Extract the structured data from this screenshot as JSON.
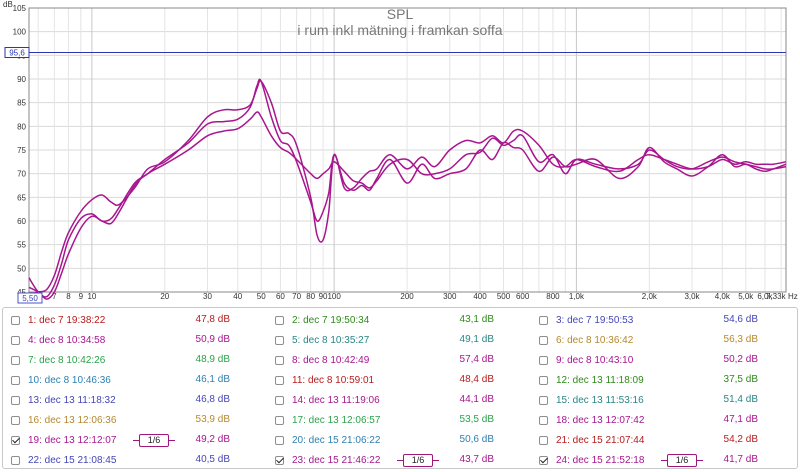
{
  "chart_data": {
    "type": "line",
    "title": "SPL",
    "subtitle": "i rum inkl mätning i framkan soffa",
    "y_unit": "dB",
    "x_unit": "Hz",
    "x_scale": "log",
    "xlim": [
      5.5,
      7330
    ],
    "ylim": [
      45,
      105
    ],
    "grid": true,
    "y_ticks": [
      45,
      50,
      55,
      60,
      65,
      70,
      75,
      80,
      85,
      90,
      95,
      100,
      105
    ],
    "x_ticks": [
      {
        "v": 7,
        "label": "7"
      },
      {
        "v": 8,
        "label": "8"
      },
      {
        "v": 9,
        "label": "9"
      },
      {
        "v": 10,
        "label": "10"
      },
      {
        "v": 20,
        "label": "20"
      },
      {
        "v": 30,
        "label": "30"
      },
      {
        "v": 40,
        "label": "40"
      },
      {
        "v": 50,
        "label": "50"
      },
      {
        "v": 60,
        "label": "60"
      },
      {
        "v": 70,
        "label": "70"
      },
      {
        "v": 80,
        "label": "80"
      },
      {
        "v": 90,
        "label": "90"
      },
      {
        "v": 100,
        "label": "100"
      },
      {
        "v": 200,
        "label": "200"
      },
      {
        "v": 300,
        "label": "300"
      },
      {
        "v": 400,
        "label": "400"
      },
      {
        "v": 500,
        "label": "500"
      },
      {
        "v": 600,
        "label": "600"
      },
      {
        "v": 800,
        "label": "800"
      },
      {
        "v": 1000,
        "label": "1,0k"
      },
      {
        "v": 2000,
        "label": "2,0k"
      },
      {
        "v": 3000,
        "label": "3,0k"
      },
      {
        "v": 4000,
        "label": "4,0k"
      },
      {
        "v": 5000,
        "label": "5,0k"
      },
      {
        "v": 6000,
        "label": "6,0k"
      }
    ],
    "x_min_label": "5,50",
    "x_max_label": "7,33k",
    "cursor_y": 95.6,
    "cursor_y_label": "95,6",
    "series": [
      {
        "name": "19: dec 13 12:12:07",
        "color": "#a8168f",
        "x": [
          5.5,
          6,
          6.5,
          7,
          7.5,
          8,
          9,
          10,
          11,
          12,
          13,
          15,
          17,
          20,
          25,
          30,
          35,
          40,
          45,
          48,
          50,
          55,
          60,
          65,
          70,
          80,
          85,
          90,
          95,
          100,
          110,
          120,
          130,
          140,
          150,
          170,
          200,
          230,
          260,
          300,
          350,
          400,
          450,
          500,
          550,
          600,
          700,
          800,
          900,
          1000,
          1200,
          1500,
          1800,
          2000,
          2300,
          2600,
          3000,
          3500,
          4000,
          4500,
          5000,
          5500,
          6000,
          6500,
          7330
        ],
        "y": [
          48,
          45,
          44,
          46.5,
          51,
          56,
          60.5,
          61.5,
          60,
          60.5,
          63,
          68,
          70,
          73,
          76.5,
          80.5,
          81,
          81.5,
          84,
          88.5,
          89.5,
          82,
          77,
          76,
          72.5,
          64,
          60,
          62,
          66,
          74,
          68,
          66.5,
          67.5,
          66.5,
          69,
          73,
          68,
          72,
          69,
          70,
          71,
          75,
          73,
          76.5,
          75.5,
          75,
          70.5,
          73.5,
          71.5,
          72,
          73,
          69,
          71.5,
          75.5,
          72.5,
          71,
          69.5,
          71.5,
          74,
          71.5,
          72,
          71,
          70.5,
          71,
          72
        ]
      },
      {
        "name": "23: dec 15 21:46:22",
        "color": "#a8168f",
        "x": [
          5.5,
          6,
          6.5,
          7,
          7.5,
          8,
          9,
          10,
          11,
          12,
          13,
          15,
          17,
          20,
          25,
          30,
          35,
          40,
          45,
          48,
          50,
          55,
          60,
          65,
          70,
          80,
          85,
          90,
          95,
          100,
          110,
          120,
          130,
          140,
          150,
          170,
          200,
          230,
          260,
          300,
          350,
          400,
          450,
          500,
          550,
          600,
          700,
          800,
          900,
          1000,
          1200,
          1500,
          1800,
          2000,
          2300,
          2600,
          3000,
          3500,
          4000,
          4500,
          5000,
          5500,
          6000,
          6500,
          7330
        ],
        "y": [
          46,
          45,
          43.5,
          45,
          49,
          53,
          58.5,
          61,
          60,
          59.5,
          62,
          67.5,
          70,
          72,
          75,
          78,
          79,
          79.5,
          81.5,
          83,
          82,
          78,
          75.5,
          74.5,
          73,
          70,
          69,
          70,
          71,
          72.5,
          70.5,
          68.5,
          68,
          67,
          68.5,
          72,
          73,
          70,
          70,
          71,
          74,
          74.5,
          77.5,
          76,
          77,
          78,
          72.5,
          74,
          70,
          73,
          72,
          71,
          72,
          75,
          73,
          71.5,
          71,
          72.5,
          73.5,
          72.5,
          72,
          71.5,
          71,
          71,
          71.5
        ]
      },
      {
        "name": "24: dec 15 21:52:18",
        "color": "#a8168f",
        "x": [
          5.5,
          6,
          6.5,
          7,
          7.5,
          8,
          9,
          10,
          11,
          12,
          13,
          15,
          17,
          20,
          25,
          30,
          35,
          40,
          45,
          48,
          50,
          55,
          60,
          65,
          70,
          80,
          85,
          90,
          95,
          100,
          110,
          120,
          130,
          140,
          150,
          170,
          200,
          230,
          260,
          300,
          350,
          400,
          450,
          500,
          550,
          600,
          700,
          800,
          900,
          1000,
          1200,
          1500,
          1800,
          2000,
          2300,
          2600,
          3000,
          3500,
          4000,
          4500,
          5000,
          5500,
          6000,
          6500,
          7330
        ],
        "y": [
          44.5,
          45,
          45.5,
          48.5,
          53.5,
          57.5,
          62,
          64.5,
          65.5,
          64,
          63.5,
          67,
          71,
          72.5,
          77,
          82,
          83.5,
          83.5,
          84.5,
          88,
          89.5,
          85,
          79,
          78.5,
          76,
          65,
          57,
          56,
          62,
          74,
          67,
          67,
          69,
          70.5,
          71,
          74,
          71,
          73.5,
          71.5,
          75,
          77,
          76.5,
          78,
          76.5,
          79,
          79,
          76,
          72,
          71.5,
          73,
          71.5,
          70.5,
          73,
          74,
          73,
          72,
          71,
          71.5,
          73,
          72,
          72.5,
          72,
          72,
          72,
          72.5
        ]
      }
    ]
  },
  "legend": [
    {
      "label": "1: dec 7 19:38:22",
      "value": "47,8 dB",
      "color": "#b71c1c",
      "checked": false,
      "smoothing": ""
    },
    {
      "label": "2: dec 7 19:50:34",
      "value": "43,1 dB",
      "color": "#2e8b1a",
      "checked": false,
      "smoothing": ""
    },
    {
      "label": "3: dec 7 19:50:53",
      "value": "54,6 dB",
      "color": "#4446b8",
      "checked": false,
      "smoothing": ""
    },
    {
      "label": "4: dec 8 10:34:58",
      "value": "50,9 dB",
      "color": "#a8168f",
      "checked": false,
      "smoothing": ""
    },
    {
      "label": "5: dec 8 10:35:27",
      "value": "49,1 dB",
      "color": "#2a8585",
      "checked": false,
      "smoothing": ""
    },
    {
      "label": "6: dec 8 10:36:42",
      "value": "56,3 dB",
      "color": "#b5892d",
      "checked": false,
      "smoothing": ""
    },
    {
      "label": "7: dec 8 10:42:26",
      "value": "48,9 dB",
      "color": "#2aa34a",
      "checked": false,
      "smoothing": ""
    },
    {
      "label": "8: dec 8 10:42:49",
      "value": "57,4 dB",
      "color": "#a8168f",
      "checked": false,
      "smoothing": ""
    },
    {
      "label": "9: dec 8 10:43:10",
      "value": "50,2 dB",
      "color": "#a8168f",
      "checked": false,
      "smoothing": ""
    },
    {
      "label": "10: dec 8 10:46:36",
      "value": "46,1 dB",
      "color": "#2e7fb0",
      "checked": false,
      "smoothing": ""
    },
    {
      "label": "11: dec 8 10:59:01",
      "value": "48,4 dB",
      "color": "#b71c1c",
      "checked": false,
      "smoothing": ""
    },
    {
      "label": "12: dec 13 11:18:09",
      "value": "37,5 dB",
      "color": "#2e8b1a",
      "checked": false,
      "smoothing": ""
    },
    {
      "label": "13: dec 13 11:18:32",
      "value": "46,8 dB",
      "color": "#4446b8",
      "checked": false,
      "smoothing": ""
    },
    {
      "label": "14: dec 13 11:19:06",
      "value": "44,1 dB",
      "color": "#a8168f",
      "checked": false,
      "smoothing": ""
    },
    {
      "label": "15: dec 13 11:53:16",
      "value": "51,4 dB",
      "color": "#2a8585",
      "checked": false,
      "smoothing": ""
    },
    {
      "label": "16: dec 13 12:06:36",
      "value": "53,9 dB",
      "color": "#b5892d",
      "checked": false,
      "smoothing": ""
    },
    {
      "label": "17: dec 13 12:06:57",
      "value": "53,5 dB",
      "color": "#2aa34a",
      "checked": false,
      "smoothing": ""
    },
    {
      "label": "18: dec 13 12:07:42",
      "value": "47,1 dB",
      "color": "#a8168f",
      "checked": false,
      "smoothing": ""
    },
    {
      "label": "19: dec 13 12:12:07",
      "value": "49,2 dB",
      "color": "#a8168f",
      "checked": true,
      "smoothing": "1/6"
    },
    {
      "label": "20: dec 15 21:06:22",
      "value": "50,6 dB",
      "color": "#2e7fb0",
      "checked": false,
      "smoothing": ""
    },
    {
      "label": "21: dec 15 21:07:44",
      "value": "54,2 dB",
      "color": "#b71c1c",
      "checked": false,
      "smoothing": ""
    },
    {
      "label": "22: dec 15 21:08:45",
      "value": "40,5 dB",
      "color": "#4446b8",
      "checked": false,
      "smoothing": ""
    },
    {
      "label": "23: dec 15 21:46:22",
      "value": "43,7 dB",
      "color": "#a8168f",
      "checked": true,
      "smoothing": "1/6"
    },
    {
      "label": "24: dec 15 21:52:18",
      "value": "41,7 dB",
      "color": "#a8168f",
      "checked": true,
      "smoothing": "1/6"
    }
  ]
}
